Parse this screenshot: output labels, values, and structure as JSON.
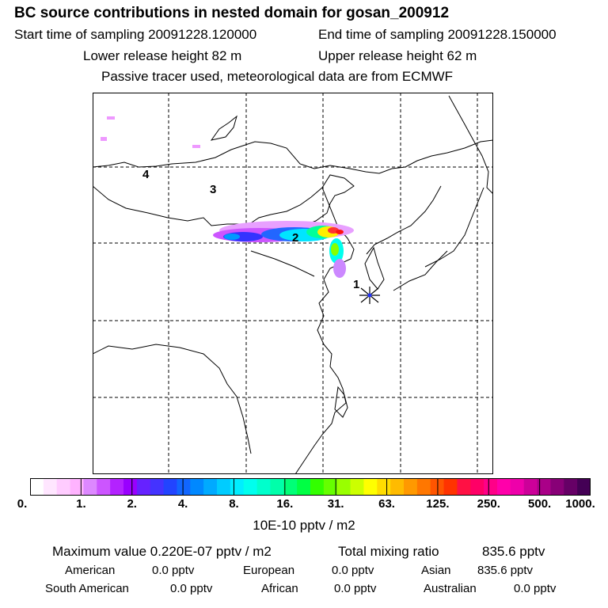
{
  "header": {
    "title": "BC  source contributions in nested domain for gosan_200912",
    "start_label": "Start time of sampling 20091228.120000",
    "end_label": "End time of sampling 20091228.150000",
    "lower_label": "Lower release height   82 m",
    "upper_label": "Upper release height   62 m",
    "note": "Passive tracer used, meteorological data are from ECMWF"
  },
  "map": {
    "region_labels": [
      "1",
      "2",
      "3",
      "4"
    ],
    "receptor_marker": "star-icon",
    "plume_colors": [
      "#ff44ff",
      "#cc66ff",
      "#8833ff",
      "#3322ff",
      "#0099ff",
      "#00ffee",
      "#00ff88",
      "#66ff00",
      "#ffee00",
      "#ff8800",
      "#ff2222"
    ]
  },
  "colorbar": {
    "ticks": [
      "0.",
      "1.",
      "2.",
      "4.",
      "8.",
      "16.",
      "31.",
      "63.",
      "125.",
      "250.",
      "500.",
      "1000."
    ],
    "colors": [
      "#ffffff",
      "#ffe6ff",
      "#ffccff",
      "#ffb3ff",
      "#dd88ff",
      "#cc55ff",
      "#b322ff",
      "#9900ff",
      "#6622ff",
      "#4433ff",
      "#2244ff",
      "#1166ff",
      "#0088ff",
      "#00aaff",
      "#00ccff",
      "#00eeff",
      "#00ffee",
      "#00ffcc",
      "#00ffaa",
      "#00ff77",
      "#00ff44",
      "#33ff00",
      "#66ff00",
      "#99ff00",
      "#ccff00",
      "#ffff00",
      "#ffdd00",
      "#ffbb00",
      "#ff9900",
      "#ff7700",
      "#ff5500",
      "#ff3300",
      "#ff1144",
      "#ff0066",
      "#ff0088",
      "#ff00aa",
      "#ee00aa",
      "#cc0099",
      "#aa0088",
      "#880077",
      "#660066",
      "#440055"
    ],
    "unit": "10E-10 pptv / m2"
  },
  "summary": {
    "maximum_label": "Maximum value  0.220E-07 pptv / m2",
    "total_label": "Total mixing ratio",
    "total_value": "835.6 pptv",
    "rows": [
      [
        {
          "label": "American",
          "value": "0.0 pptv"
        },
        {
          "label": "European",
          "value": "0.0 pptv"
        },
        {
          "label": "Asian",
          "value": "835.6 pptv"
        }
      ],
      [
        {
          "label": "South American",
          "value": "0.0 pptv"
        },
        {
          "label": "African",
          "value": "0.0 pptv"
        },
        {
          "label": "Australian",
          "value": "0.0 pptv"
        }
      ]
    ]
  }
}
